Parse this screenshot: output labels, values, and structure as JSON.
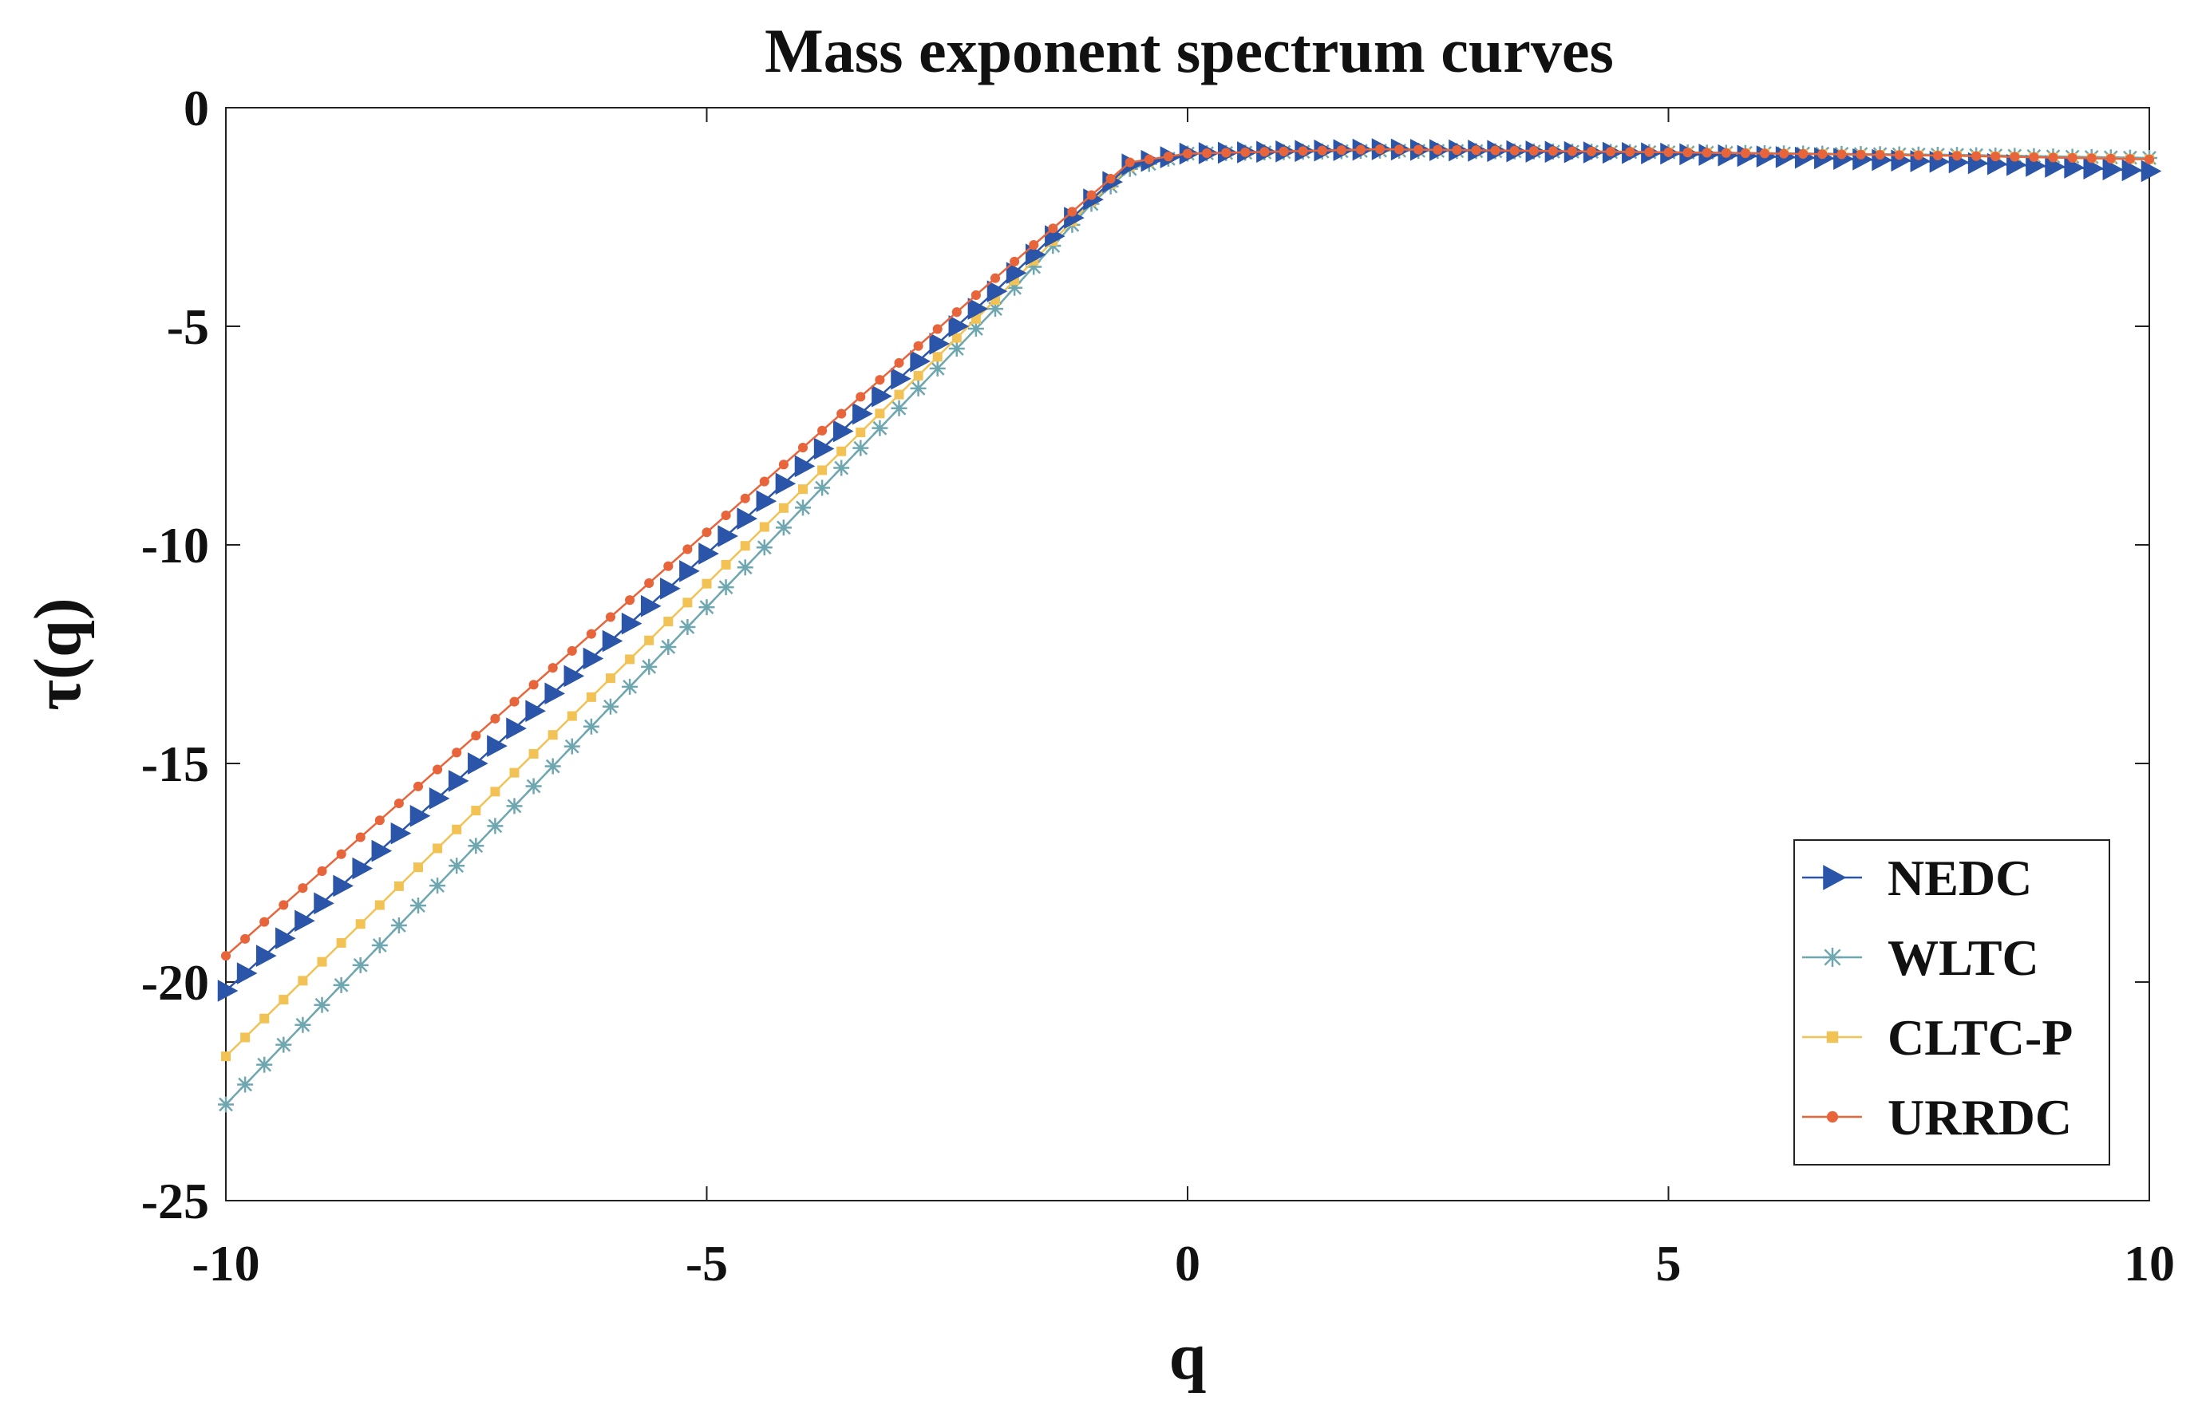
{
  "chart_data": {
    "type": "line",
    "title": "Mass exponent spectrum curves",
    "xlabel": "q",
    "ylabel": "τ(q)",
    "xlim": [
      -10,
      10
    ],
    "ylim": [
      -25,
      0
    ],
    "xticks": [
      -10,
      -5,
      0,
      5,
      10
    ],
    "yticks": [
      0,
      -5,
      -10,
      -15,
      -20,
      -25
    ],
    "xtick_labels": [
      "-10",
      "-5",
      "0",
      "5",
      "10"
    ],
    "ytick_labels": [
      "0",
      "-5",
      "-10",
      "-15",
      "-20",
      "-25"
    ],
    "grid": false,
    "legend_position": "bottom-right",
    "sampling": {
      "start": -10,
      "stop": 10,
      "step": 0.2
    },
    "series": [
      {
        "name": "NEDC",
        "color": "#2B55A8",
        "marker": "triangle-right",
        "key_points": [
          [
            -10,
            -20.2
          ],
          [
            -2,
            -4.2
          ],
          [
            -1,
            -2.1
          ],
          [
            -0.6,
            -1.3
          ],
          [
            0,
            -1.05
          ],
          [
            2,
            -0.95
          ],
          [
            5,
            -1.05
          ],
          [
            8,
            -1.25
          ],
          [
            10,
            -1.45
          ]
        ]
      },
      {
        "name": "WLTC",
        "color": "#6FA7B0",
        "marker": "asterisk",
        "key_points": [
          [
            -10,
            -22.8
          ],
          [
            -2,
            -4.6
          ],
          [
            -1,
            -2.2
          ],
          [
            -0.6,
            -1.4
          ],
          [
            0,
            -1.05
          ],
          [
            2,
            -0.98
          ],
          [
            5,
            -1.02
          ],
          [
            8,
            -1.08
          ],
          [
            10,
            -1.15
          ]
        ]
      },
      {
        "name": "CLTC-P",
        "color": "#F2C255",
        "marker": "square",
        "key_points": [
          [
            -10,
            -21.7
          ],
          [
            -2,
            -4.4
          ],
          [
            -1,
            -2.15
          ],
          [
            -0.6,
            -1.35
          ],
          [
            0,
            -1.05
          ],
          [
            2,
            -0.97
          ],
          [
            5,
            -1.02
          ],
          [
            8,
            -1.1
          ],
          [
            10,
            -1.18
          ]
        ]
      },
      {
        "name": "URRDC",
        "color": "#E8643A",
        "marker": "circle",
        "key_points": [
          [
            -10,
            -19.4
          ],
          [
            -2,
            -3.9
          ],
          [
            -1,
            -2.0
          ],
          [
            -0.6,
            -1.25
          ],
          [
            0,
            -1.05
          ],
          [
            2,
            -0.95
          ],
          [
            5,
            -1.02
          ],
          [
            8,
            -1.1
          ],
          [
            10,
            -1.18
          ]
        ]
      }
    ]
  }
}
